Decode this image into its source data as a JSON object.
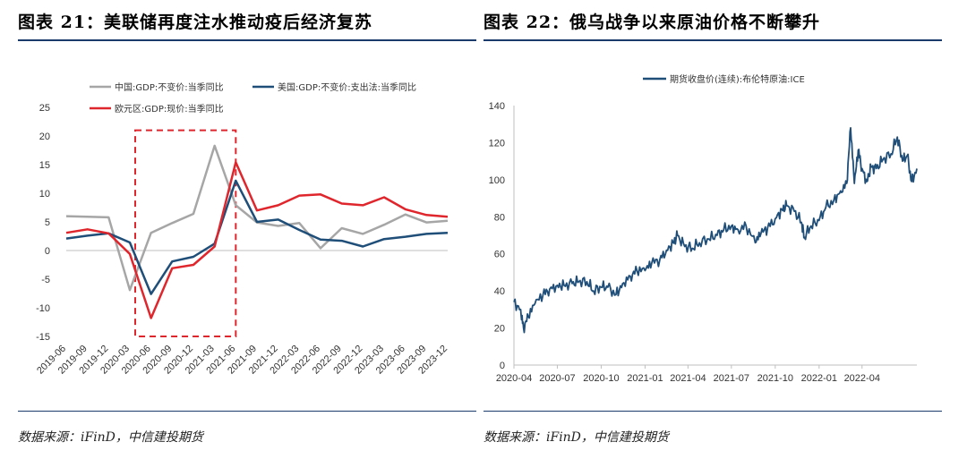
{
  "left": {
    "title": "图表 21：美联储再度注水推动疫后经济复苏",
    "source": "数据来源：iFinD，中信建投期货"
  },
  "right": {
    "title": "图表 22：俄乌战争以来原油价格不断攀升",
    "source": "数据来源：iFinD，中信建投期货"
  },
  "chart_data": [
    {
      "type": "line",
      "title": "",
      "categories": [
        "2019-06",
        "2019-09",
        "2019-12",
        "2020-03",
        "2020-06",
        "2020-09",
        "2020-12",
        "2021-03",
        "2021-06",
        "2021-09",
        "2021-12",
        "2022-03",
        "2022-06",
        "2022-09",
        "2022-12",
        "2023-03",
        "2023-06",
        "2023-09",
        "2023-12"
      ],
      "ylim": [
        -15,
        25
      ],
      "yticks": [
        "25",
        "20",
        "15",
        "10",
        "5",
        "0",
        "-5",
        "-10",
        "-15"
      ],
      "legend_placement": "top",
      "series": [
        {
          "name": "中国:GDP:不变价:当季同比",
          "color": "#a6a6a6",
          "values": [
            6.0,
            5.9,
            5.8,
            -6.9,
            3.1,
            4.8,
            6.4,
            18.3,
            7.9,
            4.9,
            4.3,
            4.8,
            0.4,
            3.9,
            2.9,
            4.5,
            6.3,
            4.9,
            5.2
          ]
        },
        {
          "name": "美国:GDP:不变价:支出法:当季同比",
          "color": "#1f4e79",
          "values": [
            2.1,
            2.6,
            3.0,
            1.4,
            -7.6,
            -1.9,
            -1.1,
            1.2,
            12.2,
            5.0,
            5.4,
            3.6,
            1.9,
            1.7,
            0.7,
            2.0,
            2.4,
            2.9,
            3.1
          ]
        },
        {
          "name": "欧元区:GDP:现价:当季同比",
          "color": "#e0262d",
          "values": [
            3.1,
            3.7,
            3.0,
            -0.6,
            -11.8,
            -3.1,
            -2.5,
            0.7,
            15.4,
            7.0,
            7.9,
            9.6,
            9.8,
            8.2,
            7.9,
            9.3,
            7.2,
            6.2,
            5.9
          ]
        }
      ],
      "annotation": {
        "type": "dashed-box",
        "color": "#e0262d",
        "from": "2020-03",
        "to": "2021-06",
        "range": [
          -15,
          21
        ]
      }
    },
    {
      "type": "line",
      "title": "",
      "legend_placement": "top",
      "x_ticks": [
        "2020-04",
        "2020-07",
        "2020-10",
        "2021-01",
        "2021-04",
        "2021-07",
        "2021-10",
        "2022-01",
        "2022-04"
      ],
      "ylim": [
        0,
        140
      ],
      "yticks": [
        "140",
        "120",
        "100",
        "80",
        "60",
        "40",
        "20",
        "0"
      ],
      "series": [
        {
          "name": "期货收盘价(连续):布伦特原油:ICE",
          "color": "#1f4e79",
          "x": [
            "2020-04-01",
            "2020-04-15",
            "2020-04-21",
            "2020-05-01",
            "2020-05-15",
            "2020-06-01",
            "2020-06-15",
            "2020-07-01",
            "2020-07-15",
            "2020-08-01",
            "2020-08-15",
            "2020-09-01",
            "2020-09-15",
            "2020-10-01",
            "2020-10-15",
            "2020-11-01",
            "2020-11-15",
            "2020-12-01",
            "2020-12-15",
            "2021-01-01",
            "2021-01-15",
            "2021-02-01",
            "2021-02-15",
            "2021-03-01",
            "2021-03-10",
            "2021-03-25",
            "2021-04-10",
            "2021-04-25",
            "2021-05-15",
            "2021-06-01",
            "2021-06-15",
            "2021-07-01",
            "2021-07-15",
            "2021-08-01",
            "2021-08-20",
            "2021-09-01",
            "2021-09-15",
            "2021-10-01",
            "2021-10-15",
            "2021-10-25",
            "2021-11-10",
            "2021-11-25",
            "2021-12-01",
            "2021-12-15",
            "2022-01-01",
            "2022-01-15",
            "2022-02-01",
            "2022-02-15",
            "2022-02-28",
            "2022-03-08",
            "2022-03-16",
            "2022-03-24",
            "2022-04-01",
            "2022-04-11",
            "2022-04-20",
            "2022-05-01",
            "2022-05-15",
            "2022-06-01",
            "2022-06-14",
            "2022-06-25",
            "2022-07-05",
            "2022-07-14",
            "2022-07-25"
          ],
          "values": [
            34,
            30,
            20,
            26,
            33,
            38,
            41,
            43,
            43,
            44,
            45,
            45,
            40,
            42,
            42,
            38,
            44,
            48,
            51,
            51,
            55,
            57,
            62,
            66,
            70,
            64,
            63,
            66,
            68,
            70,
            73,
            75,
            73,
            75,
            66,
            71,
            74,
            79,
            84,
            86,
            83,
            77,
            69,
            75,
            78,
            85,
            89,
            94,
            98,
            128,
            98,
            116,
            106,
            99,
            107,
            106,
            111,
            114,
            123,
            110,
            113,
            99,
            106
          ]
        }
      ]
    }
  ]
}
